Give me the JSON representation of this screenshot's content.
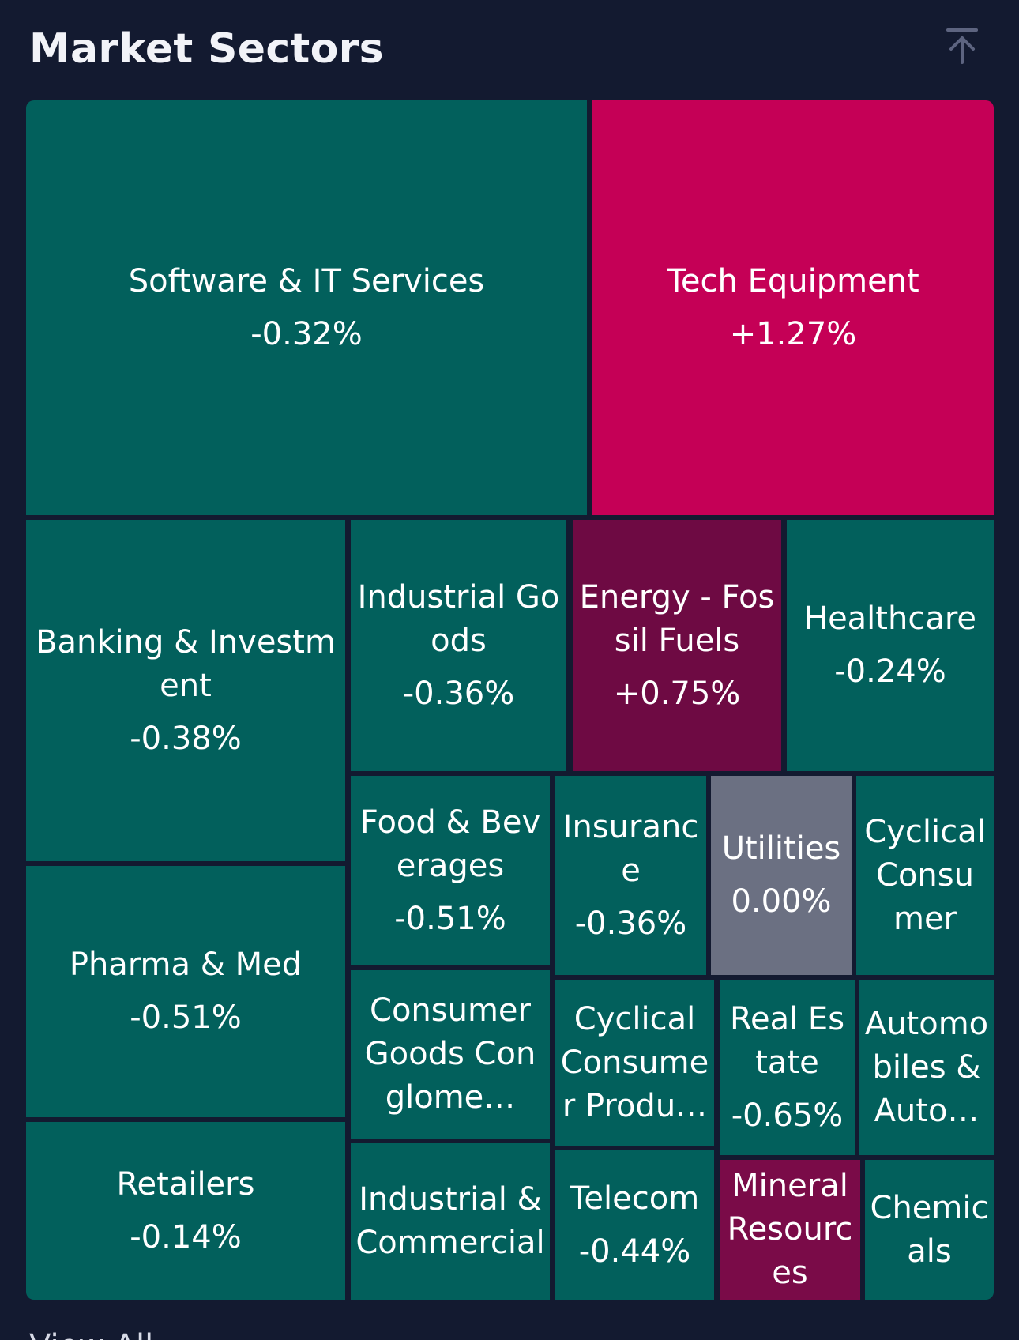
{
  "header": {
    "title": "Market Sectors",
    "collapse_icon": "collapse-up-icon"
  },
  "colors": {
    "negative": "#02605c",
    "strong_positive": "#c50056",
    "positive": "#6e0a43",
    "mild_positive": "#7a0b48",
    "neutral": "#6b7082",
    "background": "#131a30"
  },
  "sectors": [
    {
      "name": "Software & IT Services",
      "change": "-0.32%"
    },
    {
      "name": "Tech Equipment",
      "change": "+1.27%"
    },
    {
      "name": "Banking & Investment",
      "change": "-0.38%"
    },
    {
      "name": "Industrial Goods",
      "change": "-0.36%"
    },
    {
      "name": "Energy - Fossil Fuels",
      "change": "+0.75%"
    },
    {
      "name": "Healthcare",
      "change": "-0.24%"
    },
    {
      "name": "Food & Beverages",
      "change": "-0.51%"
    },
    {
      "name": "Insurance",
      "change": "-0.36%"
    },
    {
      "name": "Utilities",
      "change": "0.00%"
    },
    {
      "name": "Cyclical Consumer",
      "change": ""
    },
    {
      "name": "Pharma & Med",
      "change": "-0.51%"
    },
    {
      "name": "Consumer Goods Conglome…",
      "change": ""
    },
    {
      "name": "Cyclical Consumer Produ…",
      "change": ""
    },
    {
      "name": "Real Estate",
      "change": "-0.65%"
    },
    {
      "name": "Automobiles & Auto…",
      "change": ""
    },
    {
      "name": "Retailers",
      "change": "-0.14%"
    },
    {
      "name": "Industrial & Commercial",
      "change": ""
    },
    {
      "name": "Telecom",
      "change": "-0.44%"
    },
    {
      "name": "Mineral Resources",
      "change": ""
    },
    {
      "name": "Chemicals",
      "change": ""
    }
  ],
  "footer": {
    "view_all": "View All"
  }
}
